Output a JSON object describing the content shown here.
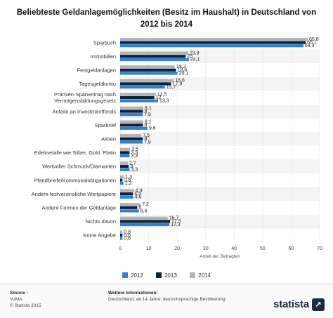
{
  "title": "Beliebteste Geldanlagemöglichkeiten (Besitz im Haushalt) in Deutschland von 2012 bis 2014",
  "chart_data": {
    "type": "bar",
    "orientation": "horizontal",
    "categories": [
      "Sparbuch",
      "Immobilien",
      "Festgeldanlagen",
      "Tagesgeldkonto",
      "Prämien-Sparvertrag nach\nVermögensbildungsgesetz",
      "Anteile an Investmentfonds",
      "Sparbrief",
      "Aktien",
      "Edelmetalle wie Silber, Gold, Platin",
      "Wertvoller Schmuck/Diamanten",
      "Pfandbriefe/Kommunalobligationen",
      "Andere festverzinsliche Wertpapiere",
      "Andere Formen der Geldanlage",
      "Nichts davon",
      "Keine Angabe"
    ],
    "series": [
      {
        "name": "2012",
        "color": "#2f7ed8",
        "values": [
          64.3,
          24.1,
          20.1,
          15.7,
          13.3,
          7.9,
          9.6,
          7.9,
          3.3,
          3.3,
          1.2,
          4.6,
          6.6,
          17.3,
          0.8
        ]
      },
      {
        "name": "2013",
        "color": "#0d233a",
        "values": [
          65.1,
          23.0,
          19.6,
          17.9,
          12.0,
          8.0,
          8.0,
          8.0,
          3.3,
          3.0,
          0.8,
          4.5,
          6.0,
          17.5,
          0.8
        ]
      },
      {
        "name": "2014",
        "color": "#b3b3b3",
        "values": [
          65.8,
          23.9,
          19.2,
          18.8,
          12.5,
          8.1,
          8.1,
          7.5,
          3.5,
          2.7,
          1.3,
          4.9,
          7.2,
          16.7,
          0.8
        ]
      }
    ],
    "value_labels": [
      [
        "64,3",
        "24,1",
        "20,1",
        "15,7",
        "13,3",
        "7,9",
        "9,6",
        "7,9",
        "3,3",
        "3,3",
        "1,2",
        "4,6",
        "6,6",
        "17,3",
        "0,8"
      ],
      [
        "65,1",
        "23",
        "19,6",
        "17,9",
        "12",
        "8",
        "8",
        "8",
        "3,3",
        "3",
        "0,8",
        "4,5",
        "6",
        "17,5",
        "0,8"
      ],
      [
        "65,8",
        "23,9",
        "19,2",
        "18,8",
        "12,5",
        "8,1",
        "8,1",
        "7,5",
        "3,5",
        "2,7",
        "1,3",
        "4,9",
        "7,2",
        "16,7",
        "0,8"
      ]
    ],
    "xlabel": "Anteil der Befragten",
    "xlim": [
      0,
      70
    ],
    "xticks": [
      0,
      10,
      20,
      30,
      40,
      50,
      60,
      70
    ],
    "grid": true,
    "legend_position": "bottom"
  },
  "legend": [
    "2012",
    "2013",
    "2014"
  ],
  "footer": {
    "source_heading": "Source :",
    "source_lines": [
      "VuMA",
      "© Statista 2015"
    ],
    "info_heading": "Weitere Informationen:",
    "info_text": "Deutschland; ab 14 Jahre; deutschsprachige Bevölkerung",
    "logo": "statista"
  }
}
